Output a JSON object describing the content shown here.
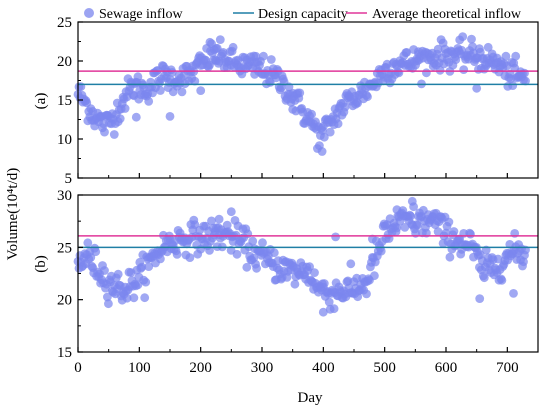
{
  "colors": {
    "scatter": "#7B86EE",
    "design": "#1F7FA5",
    "average": "#E0369A",
    "axis": "#000000"
  },
  "legend": {
    "placement": "top",
    "sewage": "Sewage inflow",
    "design": "Design capacity",
    "average": "Average theoretical inflow"
  },
  "labels": {
    "ylabel": "Volume(10⁴t/d)",
    "xlabel": "Day",
    "panel_a": "(a)",
    "panel_b": "(b)"
  },
  "chart_data": [
    {
      "type": "scatter",
      "panel": "(a)",
      "xlim": [
        0,
        750
      ],
      "ylim": [
        5,
        25
      ],
      "x_ticks": [
        0,
        100,
        200,
        300,
        400,
        500,
        600,
        700
      ],
      "y_ticks": [
        5,
        10,
        15,
        20,
        25
      ],
      "design_capacity": 17,
      "average_theoretical_inflow": 18.7,
      "trend": [
        [
          0,
          16.0
        ],
        [
          15,
          14.3
        ],
        [
          30,
          12.6
        ],
        [
          45,
          11.8
        ],
        [
          60,
          13.0
        ],
        [
          75,
          15.2
        ],
        [
          90,
          16.8
        ],
        [
          110,
          16.3
        ],
        [
          125,
          17.2
        ],
        [
          140,
          18.1
        ],
        [
          160,
          17.8
        ],
        [
          180,
          18.0
        ],
        [
          200,
          19.5
        ],
        [
          220,
          20.8
        ],
        [
          240,
          20.3
        ],
        [
          260,
          19.6
        ],
        [
          280,
          19.2
        ],
        [
          300,
          19.0
        ],
        [
          320,
          18.0
        ],
        [
          340,
          16.6
        ],
        [
          355,
          15.0
        ],
        [
          370,
          13.2
        ],
        [
          385,
          11.6
        ],
        [
          395,
          10.2
        ],
        [
          410,
          11.8
        ],
        [
          425,
          13.6
        ],
        [
          440,
          14.8
        ],
        [
          460,
          15.8
        ],
        [
          480,
          17.0
        ],
        [
          500,
          18.8
        ],
        [
          520,
          19.6
        ],
        [
          540,
          19.8
        ],
        [
          560,
          20.2
        ],
        [
          580,
          20.6
        ],
        [
          600,
          20.8
        ],
        [
          620,
          20.6
        ],
        [
          640,
          20.8
        ],
        [
          660,
          20.4
        ],
        [
          680,
          19.8
        ],
        [
          700,
          18.6
        ],
        [
          720,
          17.9
        ],
        [
          730,
          17.6
        ]
      ],
      "noise": 0.9,
      "outliers": [
        [
          215,
          22.4
        ],
        [
          225,
          21.6
        ],
        [
          200,
          16.2
        ],
        [
          350,
          13.8
        ],
        [
          398,
          8.4
        ],
        [
          95,
          12.8
        ],
        [
          150,
          12.9
        ],
        [
          290,
          20.6
        ],
        [
          555,
          21.2
        ],
        [
          650,
          16.5
        ]
      ]
    },
    {
      "type": "scatter",
      "panel": "(b)",
      "xlim": [
        0,
        750
      ],
      "ylim": [
        15,
        30
      ],
      "x_ticks": [
        0,
        100,
        200,
        300,
        400,
        500,
        600,
        700
      ],
      "y_ticks": [
        15,
        20,
        25,
        30
      ],
      "design_capacity": 25,
      "average_theoretical_inflow": 26.1,
      "trend": [
        [
          0,
          23.5
        ],
        [
          15,
          24.2
        ],
        [
          30,
          23.2
        ],
        [
          45,
          22.0
        ],
        [
          60,
          21.3
        ],
        [
          75,
          21.0
        ],
        [
          90,
          21.6
        ],
        [
          110,
          22.8
        ],
        [
          125,
          24.2
        ],
        [
          140,
          25.2
        ],
        [
          160,
          25.6
        ],
        [
          180,
          26.0
        ],
        [
          200,
          25.9
        ],
        [
          220,
          26.1
        ],
        [
          240,
          26.3
        ],
        [
          260,
          25.7
        ],
        [
          280,
          24.8
        ],
        [
          300,
          24.0
        ],
        [
          320,
          23.4
        ],
        [
          340,
          22.8
        ],
        [
          360,
          22.6
        ],
        [
          375,
          22.8
        ],
        [
          390,
          21.2
        ],
        [
          410,
          20.6
        ],
        [
          430,
          20.9
        ],
        [
          450,
          21.0
        ],
        [
          470,
          21.6
        ],
        [
          485,
          23.8
        ],
        [
          500,
          26.2
        ],
        [
          520,
          27.2
        ],
        [
          540,
          27.5
        ],
        [
          560,
          27.4
        ],
        [
          580,
          27.6
        ],
        [
          600,
          26.2
        ],
        [
          620,
          25.7
        ],
        [
          640,
          25.2
        ],
        [
          660,
          22.8
        ],
        [
          680,
          23.2
        ],
        [
          700,
          24.2
        ],
        [
          715,
          24.6
        ],
        [
          730,
          24.3
        ]
      ],
      "noise": 0.75,
      "outliers": [
        [
          250,
          28.4
        ],
        [
          545,
          29.4
        ],
        [
          655,
          20.1
        ],
        [
          710,
          20.6
        ],
        [
          400,
          18.8
        ],
        [
          230,
          27.7
        ],
        [
          420,
          26.0
        ],
        [
          480,
          25.8
        ],
        [
          520,
          28.6
        ]
      ]
    }
  ]
}
